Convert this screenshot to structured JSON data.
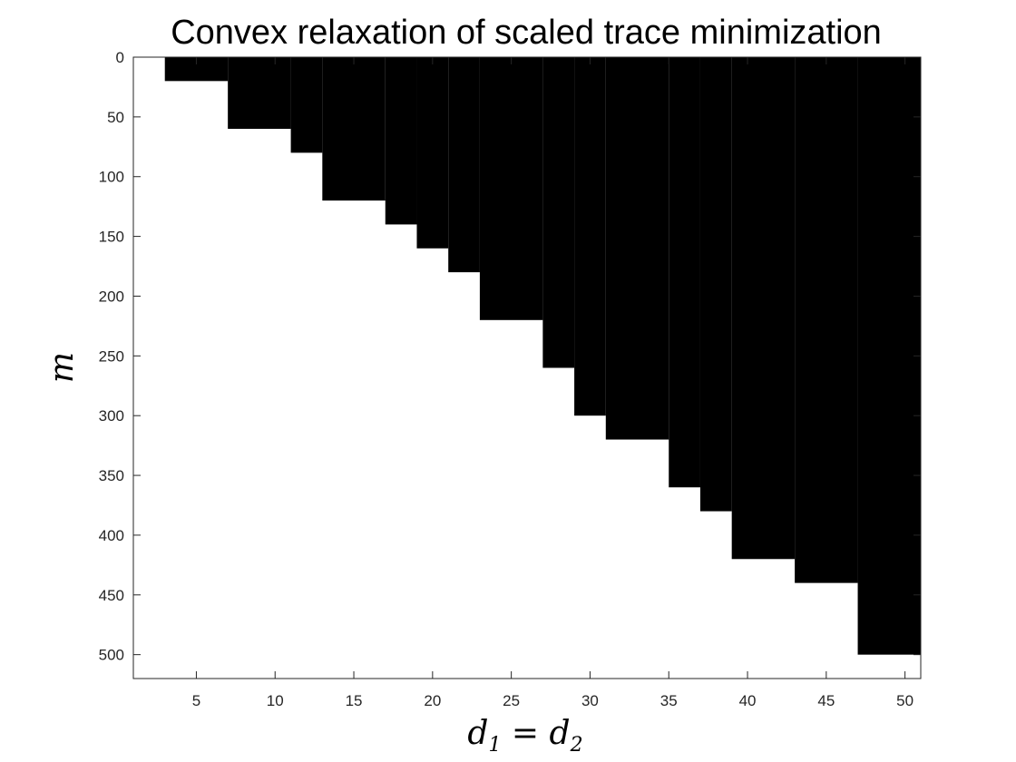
{
  "chart_data": {
    "type": "heatmap",
    "title": "Convex relaxation of scaled trace minimization",
    "xlabel": {
      "main": "d",
      "sub1": "1",
      "eq": "=",
      "main2": "d",
      "sub2": "2"
    },
    "ylabel": "m",
    "x_range": [
      1,
      51
    ],
    "y_range": [
      0,
      520
    ],
    "y_reversed": true,
    "x_ticks": [
      5,
      10,
      15,
      20,
      25,
      30,
      35,
      40,
      45,
      50
    ],
    "y_ticks": [
      0,
      50,
      100,
      150,
      200,
      250,
      300,
      350,
      400,
      450,
      500
    ],
    "colors": {
      "fail": "#000000",
      "success": "#ffffff"
    },
    "grid": false,
    "boundary": [
      {
        "d_start": 3,
        "d_end": 7,
        "m_max": 20
      },
      {
        "d_start": 7,
        "d_end": 11,
        "m_max": 60
      },
      {
        "d_start": 11,
        "d_end": 13,
        "m_max": 80
      },
      {
        "d_start": 13,
        "d_end": 17,
        "m_max": 120
      },
      {
        "d_start": 17,
        "d_end": 19,
        "m_max": 140
      },
      {
        "d_start": 19,
        "d_end": 21,
        "m_max": 160
      },
      {
        "d_start": 21,
        "d_end": 23,
        "m_max": 180
      },
      {
        "d_start": 23,
        "d_end": 27,
        "m_max": 220
      },
      {
        "d_start": 27,
        "d_end": 29,
        "m_max": 260
      },
      {
        "d_start": 29,
        "d_end": 31,
        "m_max": 300
      },
      {
        "d_start": 31,
        "d_end": 35,
        "m_max": 320
      },
      {
        "d_start": 35,
        "d_end": 37,
        "m_max": 360
      },
      {
        "d_start": 37,
        "d_end": 39,
        "m_max": 380
      },
      {
        "d_start": 39,
        "d_end": 43,
        "m_max": 420
      },
      {
        "d_start": 43,
        "d_end": 47,
        "m_max": 440
      },
      {
        "d_start": 47,
        "d_end": 51,
        "m_max": 500
      }
    ]
  }
}
